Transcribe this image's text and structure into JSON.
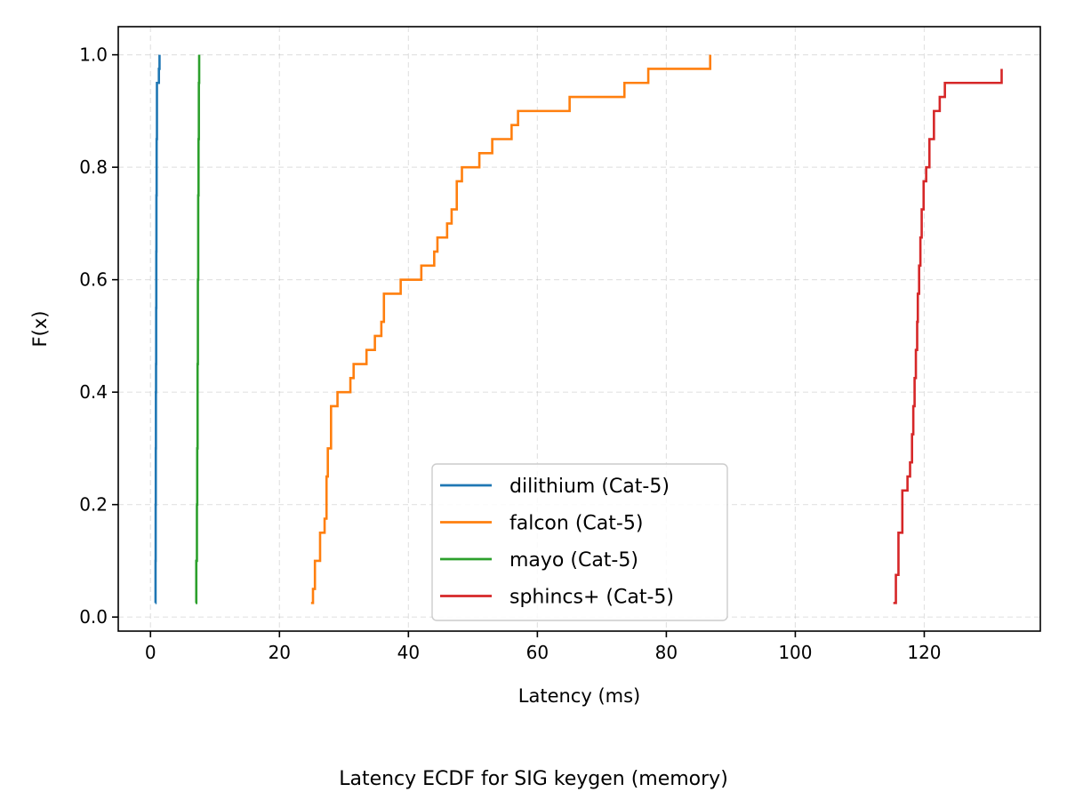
{
  "chart_data": {
    "type": "line",
    "title": "",
    "caption": "Latency ECDF for SIG keygen (memory)",
    "xlabel": "Latency (ms)",
    "ylabel": "F(x)",
    "xlim": [
      -5,
      138
    ],
    "ylim": [
      -0.025,
      1.05
    ],
    "x_ticks": [
      0,
      20,
      40,
      60,
      80,
      100,
      120
    ],
    "y_ticks": [
      0.0,
      0.2,
      0.4,
      0.6,
      0.8,
      1.0
    ],
    "x_tick_labels": [
      "0",
      "20",
      "40",
      "60",
      "80",
      "100",
      "120"
    ],
    "y_tick_labels": [
      "0.0",
      "0.2",
      "0.4",
      "0.6",
      "0.8",
      "1.0"
    ],
    "grid": true,
    "legend_position": "lower-center",
    "series": [
      {
        "name": "dilithium (Cat-5)",
        "color": "#1f77b4",
        "x": [
          0.75,
          0.78,
          0.8,
          0.82,
          0.84,
          0.86,
          0.88,
          0.9,
          0.92,
          0.95,
          1.0,
          1.1,
          1.3,
          1.4
        ],
        "y": [
          0.025,
          0.1,
          0.2,
          0.3,
          0.4,
          0.45,
          0.55,
          0.65,
          0.75,
          0.85,
          0.95,
          0.95,
          0.975,
          1.0
        ]
      },
      {
        "name": "falcon (Cat-5)",
        "color": "#ff7f0e",
        "x": [
          24.9,
          25.2,
          25.5,
          26.3,
          27.0,
          27.3,
          27.5,
          28.0,
          29.0,
          31.0,
          31.5,
          33.5,
          34.8,
          35.8,
          36.2,
          38.8,
          42.0,
          44.0,
          44.5,
          46.0,
          46.7,
          47.5,
          48.3,
          51.0,
          53.0,
          56.0,
          57.0,
          65.0,
          73.5,
          77.2,
          86.8
        ],
        "y": [
          0.025,
          0.05,
          0.1,
          0.15,
          0.175,
          0.25,
          0.3,
          0.375,
          0.4,
          0.425,
          0.45,
          0.475,
          0.5,
          0.525,
          0.575,
          0.6,
          0.625,
          0.65,
          0.675,
          0.7,
          0.725,
          0.775,
          0.8,
          0.825,
          0.85,
          0.875,
          0.9,
          0.925,
          0.95,
          0.975,
          1.0
        ]
      },
      {
        "name": "mayo (Cat-5)",
        "color": "#2ca02c",
        "x": [
          7.0,
          7.1,
          7.2,
          7.25,
          7.3,
          7.35,
          7.4,
          7.45,
          7.5,
          7.55
        ],
        "y": [
          0.025,
          0.1,
          0.2,
          0.3,
          0.45,
          0.6,
          0.75,
          0.85,
          0.95,
          1.0
        ]
      },
      {
        "name": "sphincs+ (Cat-5)",
        "color": "#d62728",
        "x": [
          115.2,
          115.6,
          116.0,
          116.6,
          117.4,
          117.8,
          118.1,
          118.3,
          118.5,
          118.7,
          118.9,
          119.0,
          119.2,
          119.4,
          119.6,
          119.9,
          120.3,
          120.8,
          121.5,
          122.4,
          123.2,
          132.0
        ],
        "y": [
          0.025,
          0.075,
          0.15,
          0.225,
          0.25,
          0.275,
          0.325,
          0.375,
          0.425,
          0.475,
          0.525,
          0.575,
          0.625,
          0.675,
          0.725,
          0.775,
          0.8,
          0.85,
          0.9,
          0.925,
          0.95,
          0.975
        ]
      }
    ]
  }
}
